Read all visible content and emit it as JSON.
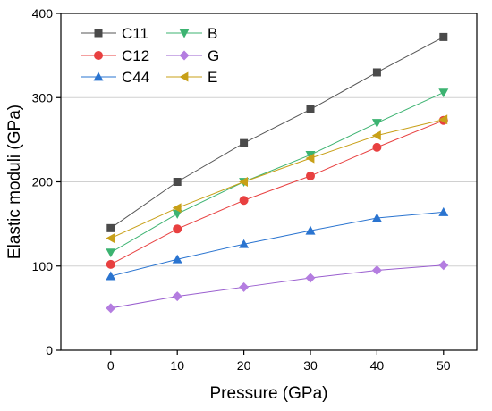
{
  "chart_data": {
    "type": "line",
    "xlabel": "Pressure (GPa)",
    "ylabel": "Elastic moduli (GPa)",
    "xlim": [
      -7.5,
      55
    ],
    "ylim": [
      0,
      400
    ],
    "xticks": [
      0,
      10,
      20,
      30,
      40,
      50
    ],
    "yticks": [
      0,
      100,
      200,
      300,
      400
    ],
    "grid": "horizontal",
    "legend_placement": "top-left",
    "x": [
      0,
      10,
      20,
      30,
      40,
      50
    ],
    "series": [
      {
        "name": "C11",
        "marker": "square",
        "color": "#4a4a4a",
        "line_color": "#555555",
        "values": [
          145,
          200,
          246,
          286,
          330,
          372
        ]
      },
      {
        "name": "C12",
        "marker": "circle",
        "color": "#e84040",
        "line_color": "#e84040",
        "values": [
          102,
          144,
          178,
          207,
          241,
          273
        ]
      },
      {
        "name": "C44",
        "marker": "triangle-up",
        "color": "#2a74d0",
        "line_color": "#2a74d0",
        "values": [
          88,
          108,
          126,
          142,
          157,
          164
        ]
      },
      {
        "name": "B",
        "marker": "triangle-down",
        "color": "#3cb371",
        "line_color": "#3cb371",
        "values": [
          116,
          162,
          200,
          232,
          270,
          306
        ]
      },
      {
        "name": "G",
        "marker": "diamond",
        "color": "#b47de0",
        "line_color": "#9a5fcf",
        "values": [
          50,
          64,
          75,
          86,
          95,
          101
        ]
      },
      {
        "name": "E",
        "marker": "triangle-left",
        "color": "#c8a018",
        "line_color": "#c8a018",
        "values": [
          133,
          169,
          200,
          228,
          255,
          274
        ]
      }
    ]
  }
}
